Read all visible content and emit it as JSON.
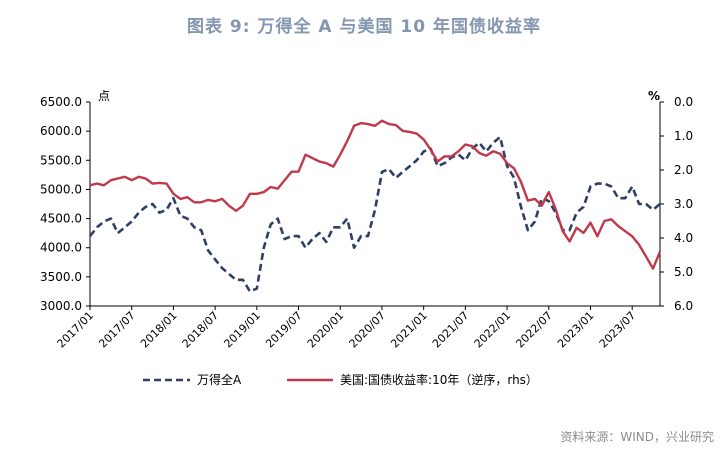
{
  "title": "图表 9:  万得全 A 与美国 10 年国债收益率",
  "source": "资料来源：WIND，兴业研究",
  "chart_data": {
    "type": "line",
    "left_unit": "点",
    "right_unit": "%",
    "y_left_range": [
      3000,
      6500
    ],
    "y_left_ticks": [
      "6500.0",
      "6000.0",
      "5500.0",
      "5000.0",
      "4500.0",
      "4000.0",
      "3500.0",
      "3000.0"
    ],
    "y_right_range": [
      0.0,
      6.0
    ],
    "y_right_inverted": true,
    "y_right_ticks": [
      "0.0",
      "1.0",
      "2.0",
      "3.0",
      "4.0",
      "5.0",
      "6.0"
    ],
    "x_ticks": [
      "2017/01",
      "2017/07",
      "2018/01",
      "2018/07",
      "2019/01",
      "2019/07",
      "2020/01",
      "2020/07",
      "2021/01",
      "2021/07",
      "2022/01",
      "2022/07",
      "2023/01",
      "2023/07"
    ],
    "x_range": [
      "2017-01",
      "2023-11"
    ],
    "grid": false,
    "legend_position": "bottom",
    "series": [
      {
        "name": "万得全A",
        "axis": "left",
        "style": "dashed",
        "color": "#2f3f66",
        "x": [
          "2017-01",
          "2017-02",
          "2017-03",
          "2017-04",
          "2017-05",
          "2017-06",
          "2017-07",
          "2017-08",
          "2017-09",
          "2017-10",
          "2017-11",
          "2017-12",
          "2018-01",
          "2018-02",
          "2018-03",
          "2018-04",
          "2018-05",
          "2018-06",
          "2018-07",
          "2018-08",
          "2018-09",
          "2018-10",
          "2018-11",
          "2018-12",
          "2019-01",
          "2019-02",
          "2019-03",
          "2019-04",
          "2019-05",
          "2019-06",
          "2019-07",
          "2019-08",
          "2019-09",
          "2019-10",
          "2019-11",
          "2019-12",
          "2020-01",
          "2020-02",
          "2020-03",
          "2020-04",
          "2020-05",
          "2020-06",
          "2020-07",
          "2020-08",
          "2020-09",
          "2020-10",
          "2020-11",
          "2020-12",
          "2021-01",
          "2021-02",
          "2021-03",
          "2021-04",
          "2021-05",
          "2021-06",
          "2021-07",
          "2021-08",
          "2021-09",
          "2021-10",
          "2021-11",
          "2021-12",
          "2022-01",
          "2022-02",
          "2022-03",
          "2022-04",
          "2022-05",
          "2022-06",
          "2022-07",
          "2022-08",
          "2022-09",
          "2022-10",
          "2022-11",
          "2022-12",
          "2023-01",
          "2023-02",
          "2023-03",
          "2023-04",
          "2023-05",
          "2023-06",
          "2023-07",
          "2023-08",
          "2023-09",
          "2023-10",
          "2023-11"
        ],
        "values": [
          4200,
          4350,
          4450,
          4500,
          4250,
          4350,
          4450,
          4600,
          4700,
          4750,
          4600,
          4650,
          4850,
          4550,
          4500,
          4350,
          4300,
          3950,
          3800,
          3650,
          3550,
          3450,
          3450,
          3250,
          3300,
          4000,
          4400,
          4500,
          4150,
          4200,
          4200,
          4000,
          4150,
          4250,
          4100,
          4350,
          4350,
          4500,
          4000,
          4200,
          4200,
          4650,
          5300,
          5350,
          5200,
          5300,
          5400,
          5500,
          5650,
          5700,
          5400,
          5450,
          5550,
          5600,
          5500,
          5700,
          5800,
          5650,
          5800,
          5900,
          5400,
          5200,
          4700,
          4300,
          4450,
          4850,
          4800,
          4600,
          4300,
          4300,
          4600,
          4700,
          5050,
          5100,
          5100,
          5050,
          4850,
          4850,
          5050,
          4750,
          4750,
          4650,
          4750
        ]
      },
      {
        "name": "美国:国债收益率:10年（逆序，rhs）",
        "axis": "right",
        "style": "solid",
        "color": "#c0394a",
        "x": [
          "2017-01",
          "2017-02",
          "2017-03",
          "2017-04",
          "2017-05",
          "2017-06",
          "2017-07",
          "2017-08",
          "2017-09",
          "2017-10",
          "2017-11",
          "2017-12",
          "2018-01",
          "2018-02",
          "2018-03",
          "2018-04",
          "2018-05",
          "2018-06",
          "2018-07",
          "2018-08",
          "2018-09",
          "2018-10",
          "2018-11",
          "2018-12",
          "2019-01",
          "2019-02",
          "2019-03",
          "2019-04",
          "2019-05",
          "2019-06",
          "2019-07",
          "2019-08",
          "2019-09",
          "2019-10",
          "2019-11",
          "2019-12",
          "2020-01",
          "2020-02",
          "2020-03",
          "2020-04",
          "2020-05",
          "2020-06",
          "2020-07",
          "2020-08",
          "2020-09",
          "2020-10",
          "2020-11",
          "2020-12",
          "2021-01",
          "2021-02",
          "2021-03",
          "2021-04",
          "2021-05",
          "2021-06",
          "2021-07",
          "2021-08",
          "2021-09",
          "2021-10",
          "2021-11",
          "2021-12",
          "2022-01",
          "2022-02",
          "2022-03",
          "2022-04",
          "2022-05",
          "2022-06",
          "2022-07",
          "2022-08",
          "2022-09",
          "2022-10",
          "2022-11",
          "2022-12",
          "2023-01",
          "2023-02",
          "2023-03",
          "2023-04",
          "2023-05",
          "2023-06",
          "2023-07",
          "2023-08",
          "2023-09",
          "2023-10",
          "2023-11"
        ],
        "values": [
          2.45,
          2.4,
          2.45,
          2.3,
          2.25,
          2.2,
          2.3,
          2.2,
          2.25,
          2.4,
          2.38,
          2.4,
          2.7,
          2.85,
          2.8,
          2.95,
          2.95,
          2.88,
          2.92,
          2.85,
          3.05,
          3.2,
          3.05,
          2.7,
          2.7,
          2.65,
          2.5,
          2.55,
          2.3,
          2.05,
          2.05,
          1.55,
          1.65,
          1.75,
          1.8,
          1.9,
          1.55,
          1.15,
          0.7,
          0.62,
          0.65,
          0.7,
          0.55,
          0.65,
          0.68,
          0.85,
          0.88,
          0.93,
          1.1,
          1.4,
          1.75,
          1.6,
          1.6,
          1.45,
          1.25,
          1.3,
          1.5,
          1.58,
          1.45,
          1.52,
          1.8,
          1.95,
          2.35,
          2.9,
          2.85,
          3.05,
          2.65,
          3.15,
          3.8,
          4.1,
          3.7,
          3.85,
          3.55,
          3.95,
          3.5,
          3.45,
          3.65,
          3.8,
          3.95,
          4.2,
          4.55,
          4.9,
          4.4
        ]
      }
    ]
  }
}
